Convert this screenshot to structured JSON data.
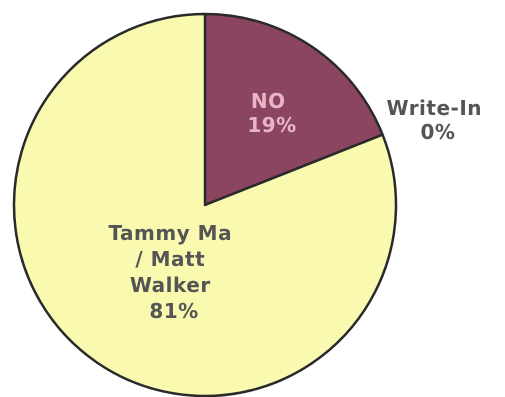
{
  "chart_data": {
    "type": "pie",
    "title": "",
    "slices": [
      {
        "label": "NO",
        "value": 19,
        "value_label": "19%",
        "color": "#8B4560",
        "label_color": "#E8B4C6"
      },
      {
        "label": "Write-In",
        "value": 0,
        "value_label": "0%",
        "color": "#F2F2C0",
        "label_color": "#555555"
      },
      {
        "label": "Tammy Ma / Matt Walker",
        "value": 81,
        "value_label": "81%",
        "color": "#F9F9B0",
        "label_color": "#555555"
      }
    ],
    "legend": "none",
    "outline_color": "#2a2a2a"
  }
}
